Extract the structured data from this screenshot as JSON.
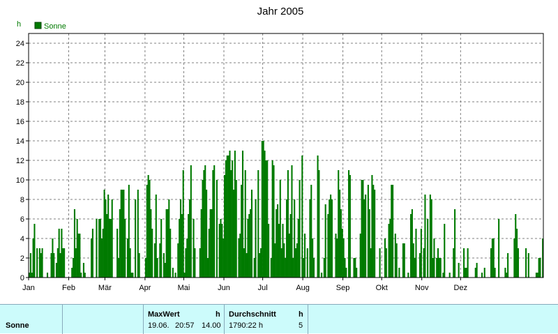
{
  "colors": {
    "bar": "#007a00",
    "grid": "#808080",
    "footer_bg": "#ccfbfb"
  },
  "chart_data": {
    "type": "bar",
    "title": "Jahr 2005",
    "ylabel": "h",
    "ylim": [
      0,
      25
    ],
    "yticks": [
      0,
      2,
      4,
      6,
      8,
      10,
      12,
      14,
      16,
      18,
      20,
      22,
      24
    ],
    "x_tick_labels": [
      "Jan",
      "Feb",
      "Mär",
      "Apr",
      "Mai",
      "Jun",
      "Jul",
      "Aug",
      "Sep",
      "Okt",
      "Nov",
      "Dez"
    ],
    "grid": true,
    "legend_position": "top-left",
    "series": [
      {
        "name": "Sonne",
        "color": "#007a00",
        "values": [
          0.5,
          2.5,
          0.5,
          4,
          5.5,
          0,
          3,
          0,
          3,
          2.5,
          3,
          0,
          0,
          0,
          0.5,
          0,
          0,
          2.5,
          4,
          2.5,
          0,
          1.5,
          3,
          5,
          2.5,
          5,
          3,
          3,
          0,
          0,
          0,
          0,
          0,
          1,
          2,
          7,
          3,
          6,
          4.5,
          4.5,
          0.5,
          0,
          1.5,
          0.5,
          0,
          0,
          0,
          0,
          4,
          5,
          0,
          0,
          6,
          0,
          6,
          6,
          4,
          5,
          9,
          8,
          6.5,
          8.5,
          6,
          6,
          8,
          0,
          0,
          0,
          5,
          2,
          7,
          9,
          9,
          9,
          6,
          0,
          4,
          9.5,
          3,
          0.5,
          0.5,
          0,
          8,
          0,
          9,
          2.5,
          0,
          0,
          0,
          0,
          2,
          9.5,
          10.5,
          10,
          7,
          5,
          0,
          3.5,
          8.5,
          2,
          0,
          3.5,
          6,
          0,
          2.5,
          1.5,
          7,
          7,
          8,
          5,
          0,
          1,
          0,
          0.5,
          0,
          3.5,
          6,
          8,
          6.5,
          11,
          0.5,
          3,
          4,
          6.5,
          8,
          11.5,
          0,
          6,
          3,
          0,
          0,
          0,
          3,
          7,
          10,
          11,
          11.5,
          9,
          2,
          5,
          7,
          7,
          11,
          11.5,
          0,
          10,
          0,
          5.5,
          6,
          5.5,
          4,
          10.5,
          12,
          12.5,
          12.5,
          13,
          11,
          12,
          9,
          13,
          10,
          0,
          4,
          4.5,
          9.5,
          13,
          3,
          11,
          2.5,
          6,
          6.5,
          7,
          9,
          0,
          2,
          8,
          0,
          11,
          2.5,
          3,
          14,
          14,
          13,
          12,
          12,
          5.5,
          0,
          2,
          12,
          11.5,
          3.5,
          7,
          7.5,
          5.5,
          10,
          3,
          5.5,
          3.5,
          2,
          8,
          11,
          4.5,
          6.5,
          11.5,
          2,
          8,
          3,
          3.5,
          6,
          10,
          0,
          12.5,
          2,
          4.5,
          0,
          3,
          0,
          8,
          9.5,
          4,
          2,
          0,
          0,
          12.5,
          11,
          0,
          0.5,
          0,
          2,
          7.5,
          0,
          6.5,
          8,
          8.5,
          8,
          0,
          0,
          4.5,
          4,
          11,
          9,
          7,
          5,
          4,
          2,
          1,
          0,
          11,
          10.5,
          0,
          0,
          2,
          2,
          1,
          0,
          0,
          4.5,
          10,
          10,
          8,
          8.5,
          0,
          9.5,
          7,
          3,
          10.5,
          9.5,
          9,
          0,
          0,
          0,
          3,
          0,
          0,
          0,
          4,
          3,
          0,
          5.5,
          6,
          9.5,
          9.5,
          0,
          4.5,
          3.5,
          0,
          1,
          0,
          0,
          3.5,
          3.5,
          0,
          0,
          0.5,
          0,
          6.5,
          7,
          3.5,
          2,
          5,
          0,
          0,
          2.5,
          5,
          0,
          3,
          8.5,
          0,
          6,
          0,
          8.5,
          8,
          2,
          4,
          0,
          2,
          3,
          2,
          2,
          0,
          0.5,
          5.5,
          0,
          0,
          0,
          0.5,
          0,
          0,
          3,
          7,
          0,
          0,
          1.5,
          0,
          0,
          0,
          3,
          1,
          1,
          3,
          0,
          0,
          0,
          0,
          0,
          1,
          1.5,
          0,
          0,
          0,
          0.5,
          0,
          1,
          0,
          0,
          0,
          0,
          3,
          4,
          4,
          1,
          0,
          0,
          6,
          0,
          0,
          0,
          0,
          1,
          0.5,
          2.5,
          0,
          0,
          0,
          0,
          4,
          6.5,
          5,
          3,
          0,
          0,
          0,
          0,
          0,
          3,
          0,
          2.5,
          0,
          0,
          0,
          0,
          0,
          0.5,
          0.5,
          2,
          2,
          0,
          4
        ]
      }
    ]
  },
  "footer": {
    "series_name": "Sonne",
    "max_header": "MaxWert",
    "max_unit": "h",
    "max_date": "19.06.",
    "max_time": "20:57",
    "max_value": "14.00",
    "avg_header": "Durchschnitt",
    "avg_unit": "h",
    "avg_total": "1790:22 h",
    "avg_value": "5"
  }
}
